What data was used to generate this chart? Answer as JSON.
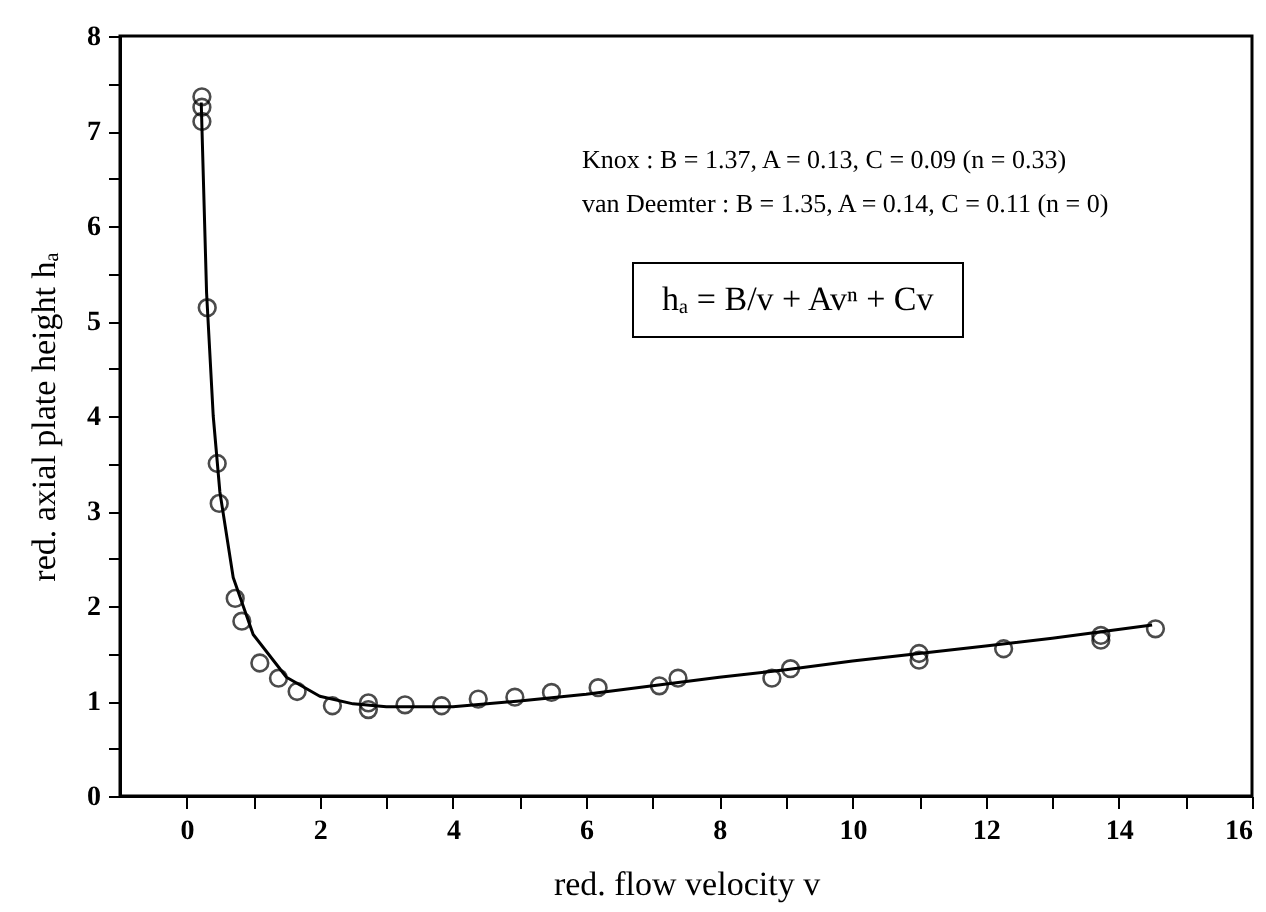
{
  "chart_data": {
    "type": "scatter",
    "xlabel": "red. flow velocity v",
    "ylabel": "red. axial plate height hₐ",
    "xlim": [
      -1,
      16
    ],
    "ylim": [
      0,
      8
    ],
    "xticks": [
      0,
      {
        "value": 1,
        "label": null
      },
      2,
      {
        "value": 3,
        "label": null
      },
      4,
      {
        "value": 5,
        "label": null
      },
      6,
      {
        "value": 7,
        "label": null
      },
      8,
      {
        "value": 9,
        "label": null
      },
      10,
      {
        "value": 11,
        "label": null
      },
      12,
      {
        "value": 13,
        "label": null
      },
      14,
      {
        "value": 15,
        "label": null
      },
      16
    ],
    "yticks": [
      0,
      {
        "value": 0.5,
        "label": null
      },
      1,
      {
        "value": 1.5,
        "label": null
      },
      2,
      {
        "value": 2.5,
        "label": null
      },
      3,
      {
        "value": 3.5,
        "label": null
      },
      4,
      {
        "value": 4.5,
        "label": null
      },
      5,
      {
        "value": 5.5,
        "label": null
      },
      6,
      {
        "value": 6.5,
        "label": null
      },
      7,
      {
        "value": 7.5,
        "label": null
      },
      8
    ],
    "grid": false,
    "series": [
      {
        "marker": "circle",
        "color": "#000000",
        "x": [
          0.23,
          0.23,
          0.23,
          0.31,
          0.46,
          0.49,
          0.73,
          0.83,
          1.1,
          1.38,
          1.66,
          2.19,
          2.73,
          2.73,
          3.28,
          3.83,
          4.38,
          4.93,
          5.48,
          6.18,
          7.1,
          7.38,
          8.79,
          9.07,
          11.0,
          11.0,
          12.27,
          13.73,
          13.73,
          14.55
        ],
        "values": [
          7.36,
          7.25,
          7.1,
          5.14,
          3.5,
          3.08,
          2.08,
          1.84,
          1.4,
          1.24,
          1.1,
          0.95,
          0.91,
          0.98,
          0.96,
          0.95,
          1.02,
          1.04,
          1.09,
          1.14,
          1.16,
          1.24,
          1.24,
          1.34,
          1.5,
          1.43,
          1.55,
          1.69,
          1.64,
          1.76
        ]
      },
      {
        "type": "line",
        "color": "#000000",
        "x": [
          0.22,
          0.3,
          0.4,
          0.5,
          0.7,
          1.0,
          1.5,
          2,
          2.5,
          3,
          4,
          5,
          6,
          7,
          8,
          9,
          10,
          11,
          12,
          13,
          14.5
        ],
        "values": [
          7.3,
          5.3,
          4.0,
          3.2,
          2.3,
          1.7,
          1.25,
          1.05,
          0.97,
          0.94,
          0.94,
          1.0,
          1.07,
          1.16,
          1.25,
          1.33,
          1.42,
          1.5,
          1.58,
          1.66,
          1.8
        ]
      }
    ],
    "annotations": [
      "Knox :  B = 1.37, A = 0.13, C = 0.09  (n = 0.33)",
      "van Deemter :  B = 1.35, A = 0.14, C = 0.11 (n = 0)",
      "hₐ = B/v + Avⁿ + Cv"
    ]
  }
}
